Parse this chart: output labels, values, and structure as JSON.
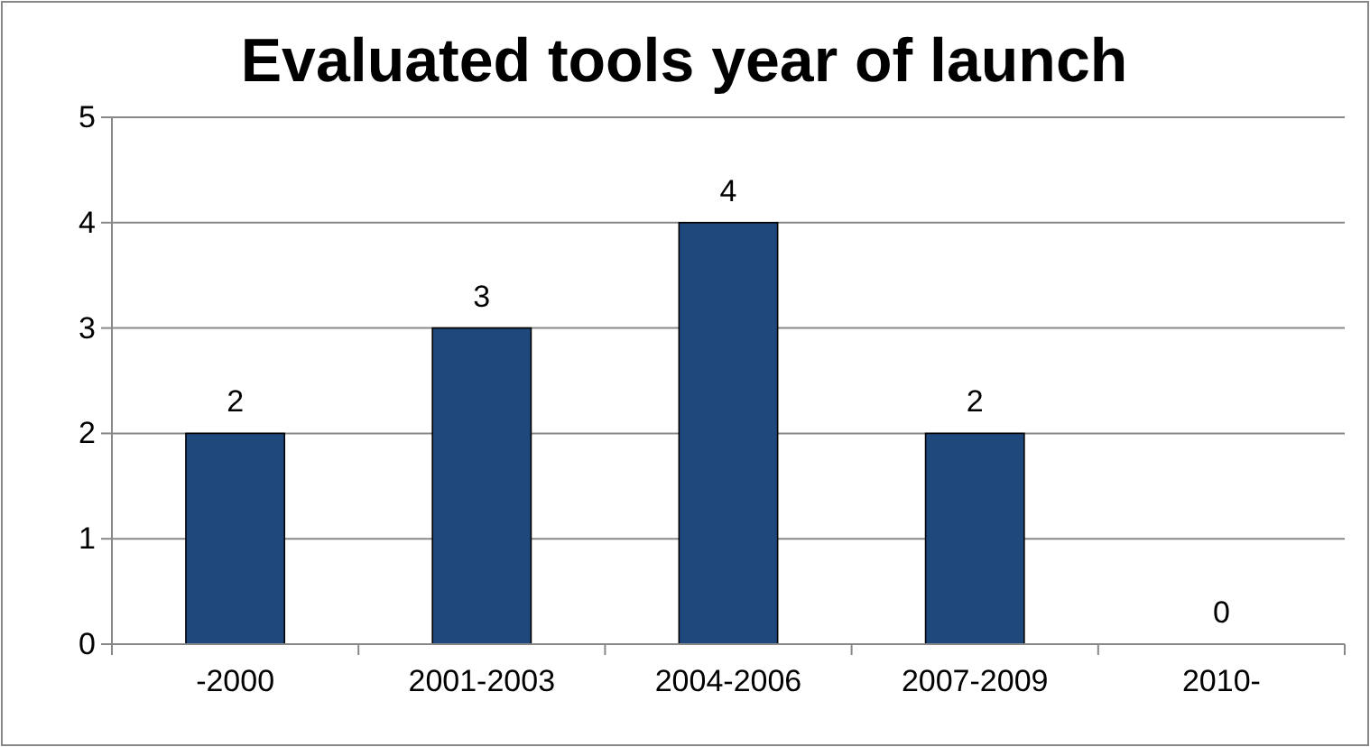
{
  "chart_data": {
    "type": "bar",
    "title": "Evaluated tools year of launch",
    "categories": [
      "-2000",
      "2001-2003",
      "2004-2006",
      "2007-2009",
      "2010-"
    ],
    "values": [
      2,
      3,
      4,
      2,
      0
    ],
    "color": "#1f497d",
    "ylim": [
      0,
      5
    ],
    "yticks": [
      0,
      1,
      2,
      3,
      4,
      5
    ],
    "grid": "y",
    "data_labels": true
  }
}
